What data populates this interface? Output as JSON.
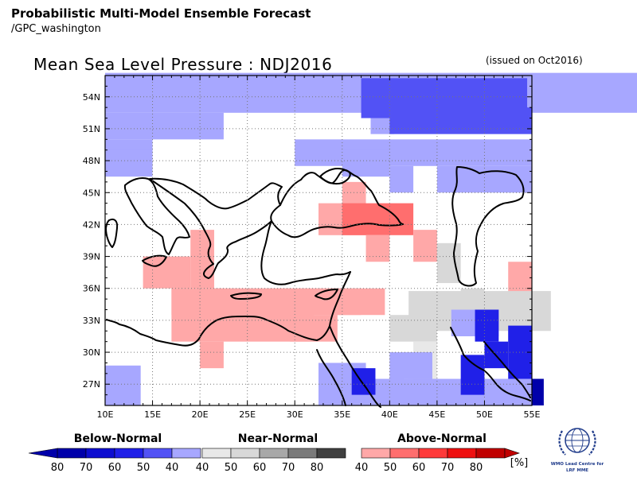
{
  "header": {
    "title": "Probabilistic Multi-Model Ensemble Forecast",
    "source": "/GPC_washington"
  },
  "map": {
    "title": "Mean Sea Level Pressure : NDJ2016",
    "issued": "(issued on Oct2016)",
    "lat_labels": [
      "54N",
      "51N",
      "48N",
      "45N",
      "42N",
      "39N",
      "36N",
      "33N",
      "30N",
      "27N"
    ],
    "lon_labels": [
      "10E",
      "15E",
      "20E",
      "25E",
      "30E",
      "35E",
      "40E",
      "45E",
      "50E",
      "55E"
    ],
    "lon_range": [
      10,
      55
    ],
    "lat_range": [
      25,
      56
    ],
    "grid": "dotted",
    "cell_size_deg": 2.5
  },
  "legend": {
    "below": {
      "title": "Below-Normal",
      "values": [
        "80",
        "70",
        "60",
        "50",
        "40"
      ]
    },
    "near": {
      "title": "Near-Normal",
      "values": [
        "40",
        "50",
        "60",
        "70",
        "80"
      ]
    },
    "above": {
      "title": "Above-Normal",
      "values": [
        "40",
        "50",
        "60",
        "70",
        "80"
      ]
    },
    "unit": "[%]"
  },
  "logo": {
    "name": "wmo-emblem",
    "caption_lines": [
      "WMO Lead Centre for",
      "LRF MME"
    ]
  },
  "colors": {
    "below_40": "#a7a7ff",
    "below_50": "#5252f5",
    "below_60": "#2020e8",
    "below_70": "#0e0ed0",
    "below_80": "#0000aa",
    "near_40": "#e8e8e8",
    "near_50": "#d8d8d8",
    "near_60": "#a8a8a8",
    "near_70": "#7a7a7a",
    "near_80": "#404040",
    "above_40": "#ffa8a8",
    "above_50": "#ff6e6e",
    "above_60": "#ff3a3a",
    "above_70": "#ee1010",
    "above_80": "#c00000"
  }
}
